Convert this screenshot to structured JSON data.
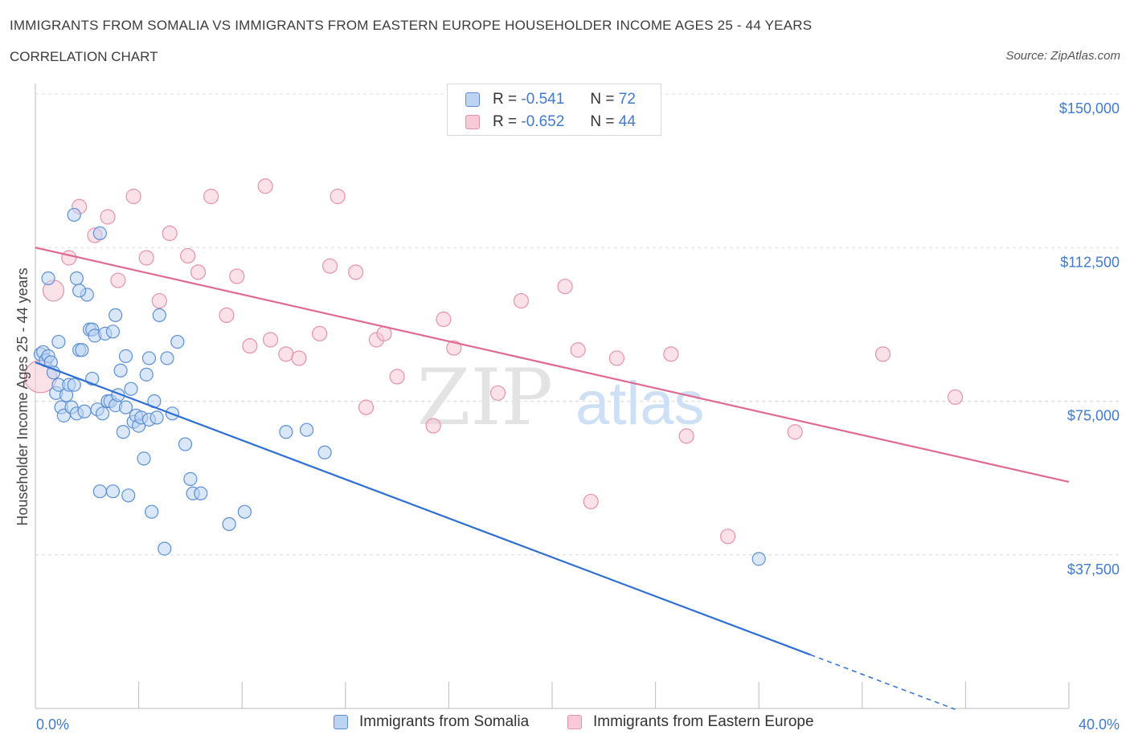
{
  "header": {
    "title": "IMMIGRANTS FROM SOMALIA VS IMMIGRANTS FROM EASTERN EUROPE HOUSEHOLDER INCOME AGES 25 - 44 YEARS",
    "subtitle": "CORRELATION CHART",
    "source": "Source: ZipAtlas.com"
  },
  "legend": {
    "rows": [
      {
        "r_label": "R =",
        "r_value": "-0.541",
        "n_label": "N =",
        "n_value": "72"
      },
      {
        "r_label": "R =",
        "r_value": "-0.652",
        "n_label": "N =",
        "n_value": "44"
      }
    ]
  },
  "watermark": {
    "zip": "ZIP",
    "atlas": "atlas"
  },
  "colors": {
    "somalia_fill": "#bcd3f4",
    "somalia_stroke": "#5b8fd8",
    "somalia_line": "#2e6fd4",
    "ee_fill": "#f8c9d6",
    "ee_stroke": "#e891ab",
    "ee_line": "#e06a92",
    "tick_text": "#3f7bd3"
  },
  "chart_data": {
    "type": "scatter",
    "title": "IMMIGRANTS FROM SOMALIA VS IMMIGRANTS FROM EASTERN EUROPE HOUSEHOLDER INCOME AGES 25 - 44 YEARS",
    "subtitle": "CORRELATION CHART",
    "xlabel": "",
    "ylabel": "Householder Income Ages 25 - 44 years",
    "xlim": [
      0,
      40
    ],
    "ylim": [
      0,
      150000
    ],
    "x_tick_labels": [
      "0.0%",
      "40.0%"
    ],
    "y_ticks": [
      {
        "value": 37500,
        "label": "$37,500"
      },
      {
        "value": 75000,
        "label": "$75,000"
      },
      {
        "value": 112500,
        "label": "$112,500"
      },
      {
        "value": 150000,
        "label": "$150,000"
      }
    ],
    "grid": true,
    "series": [
      {
        "name": "Immigrants from Somalia",
        "color": "#5b8fd8",
        "trend": {
          "x_start": 0,
          "y_start": 84500,
          "x_solid_end": 30.0,
          "x_dash_end": 35.6,
          "slope_per_pct": -2380
        },
        "points": [
          [
            0.2,
            86500
          ],
          [
            0.3,
            87000
          ],
          [
            0.4,
            85000
          ],
          [
            0.5,
            86000
          ],
          [
            0.6,
            84500
          ],
          [
            0.7,
            82000
          ],
          [
            0.8,
            77000
          ],
          [
            0.9,
            79000
          ],
          [
            0.9,
            89500
          ],
          [
            1.0,
            73500
          ],
          [
            1.1,
            71500
          ],
          [
            1.2,
            76500
          ],
          [
            1.3,
            79000
          ],
          [
            1.4,
            73500
          ],
          [
            1.5,
            79000
          ],
          [
            1.6,
            72000
          ],
          [
            1.7,
            87500
          ],
          [
            1.8,
            87500
          ],
          [
            1.9,
            72500
          ],
          [
            2.0,
            101000
          ],
          [
            2.1,
            92500
          ],
          [
            2.2,
            80500
          ],
          [
            2.2,
            92500
          ],
          [
            2.3,
            91000
          ],
          [
            2.4,
            73000
          ],
          [
            2.5,
            53000
          ],
          [
            2.6,
            72000
          ],
          [
            2.7,
            91500
          ],
          [
            2.8,
            75000
          ],
          [
            2.9,
            75000
          ],
          [
            3.0,
            53000
          ],
          [
            3.1,
            74000
          ],
          [
            3.2,
            76500
          ],
          [
            3.3,
            82500
          ],
          [
            3.4,
            67500
          ],
          [
            3.5,
            73500
          ],
          [
            3.5,
            86000
          ],
          [
            3.6,
            52000
          ],
          [
            3.7,
            78000
          ],
          [
            3.8,
            70000
          ],
          [
            3.9,
            71500
          ],
          [
            4.0,
            69000
          ],
          [
            4.1,
            71000
          ],
          [
            4.2,
            61000
          ],
          [
            4.3,
            81500
          ],
          [
            4.4,
            70500
          ],
          [
            4.4,
            85500
          ],
          [
            4.5,
            48000
          ],
          [
            4.6,
            75000
          ],
          [
            4.7,
            71000
          ],
          [
            4.8,
            96000
          ],
          [
            5.0,
            39000
          ],
          [
            5.1,
            85500
          ],
          [
            5.3,
            72000
          ],
          [
            5.5,
            89500
          ],
          [
            5.8,
            64500
          ],
          [
            6.0,
            56000
          ],
          [
            6.1,
            52500
          ],
          [
            6.4,
            52500
          ],
          [
            7.5,
            45000
          ],
          [
            8.1,
            48000
          ],
          [
            9.7,
            67500
          ],
          [
            10.5,
            68000
          ],
          [
            11.2,
            62500
          ],
          [
            28.0,
            36500
          ],
          [
            0.5,
            105000
          ],
          [
            1.5,
            120500
          ],
          [
            1.6,
            105000
          ],
          [
            1.7,
            102000
          ],
          [
            2.5,
            116000
          ],
          [
            3.0,
            92000
          ],
          [
            3.1,
            96000
          ]
        ]
      },
      {
        "name": "Immigrants from Eastern Europe",
        "color": "#e891ab",
        "trend": {
          "x_start": 0,
          "y_start": 112500,
          "x_end": 40,
          "slope_per_pct": -1430
        },
        "points": [
          [
            0.2,
            81000
          ],
          [
            0.7,
            102000
          ],
          [
            1.3,
            110000
          ],
          [
            1.7,
            122500
          ],
          [
            2.3,
            115500
          ],
          [
            2.8,
            120000
          ],
          [
            3.2,
            104500
          ],
          [
            3.8,
            125000
          ],
          [
            4.3,
            110000
          ],
          [
            4.8,
            99500
          ],
          [
            5.2,
            116000
          ],
          [
            5.9,
            110500
          ],
          [
            6.3,
            106500
          ],
          [
            6.8,
            125000
          ],
          [
            7.4,
            96000
          ],
          [
            7.8,
            105500
          ],
          [
            8.3,
            88500
          ],
          [
            8.9,
            127500
          ],
          [
            9.1,
            90000
          ],
          [
            9.7,
            86500
          ],
          [
            10.2,
            85500
          ],
          [
            11.0,
            91500
          ],
          [
            11.4,
            108000
          ],
          [
            11.7,
            125000
          ],
          [
            12.4,
            106500
          ],
          [
            12.8,
            73500
          ],
          [
            13.2,
            90000
          ],
          [
            13.5,
            91500
          ],
          [
            14.0,
            81000
          ],
          [
            15.4,
            69000
          ],
          [
            15.8,
            95000
          ],
          [
            16.2,
            88000
          ],
          [
            17.9,
            77000
          ],
          [
            18.8,
            99500
          ],
          [
            20.5,
            103000
          ],
          [
            21.0,
            87500
          ],
          [
            21.5,
            50500
          ],
          [
            22.5,
            85500
          ],
          [
            24.6,
            86500
          ],
          [
            25.2,
            66500
          ],
          [
            26.8,
            42000
          ],
          [
            29.4,
            67500
          ],
          [
            32.8,
            86500
          ],
          [
            35.6,
            76000
          ]
        ]
      }
    ]
  }
}
